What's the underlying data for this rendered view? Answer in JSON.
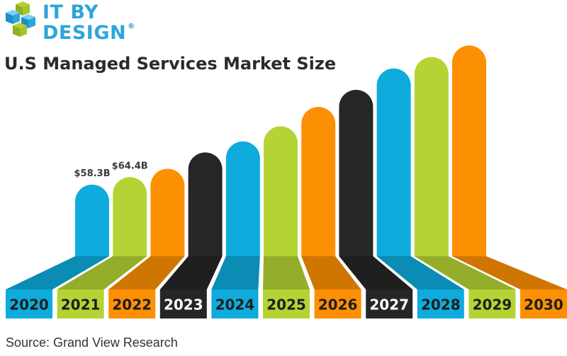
{
  "brand": {
    "line1": "IT BY",
    "line2": "DESIGN",
    "registered": "®"
  },
  "source": "Source: Grand View Research",
  "colors": {
    "blue": "#0eabdc",
    "green": "#b5d334",
    "orange": "#fd9002",
    "black": "#262626",
    "title": "#2b2b2b"
  },
  "chart_data": {
    "type": "bar",
    "title": "U.S Managed Services Market Size",
    "categories": [
      "2020",
      "2021",
      "2022",
      "2023",
      "2024",
      "2025",
      "2026",
      "2027",
      "2028",
      "2029",
      "2030"
    ],
    "values": [
      58.3,
      64.4,
      71.2,
      84.5,
      93.5,
      105.8,
      121.6,
      135.5,
      152.9,
      162.2,
      171.6
    ],
    "data_labels": [
      "$58.3B",
      "$64.4B",
      "",
      "",
      "",
      "",
      "",
      "",
      "",
      "",
      ""
    ],
    "bar_colors": [
      "blue",
      "green",
      "orange",
      "black",
      "blue",
      "green",
      "orange",
      "black",
      "blue",
      "green",
      "orange"
    ],
    "unit": "B"
  }
}
